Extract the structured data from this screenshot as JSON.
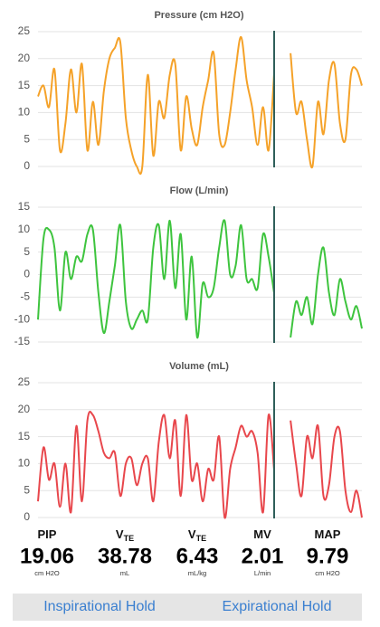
{
  "chart_data": [
    {
      "type": "line",
      "title": "Pressure (cm H2O)",
      "color": "#f5a229",
      "ylim": [
        0,
        25
      ],
      "yticks": [
        0,
        5,
        10,
        15,
        20,
        25
      ],
      "grid": true,
      "values": [
        13,
        15,
        11,
        18,
        3,
        8,
        18,
        10,
        19,
        3,
        12,
        4,
        14,
        20,
        22,
        23,
        9,
        3,
        0,
        0,
        17,
        2,
        12,
        9,
        17,
        19,
        3,
        13,
        7,
        4,
        11,
        16,
        21,
        6,
        4,
        10,
        18,
        24,
        16,
        11,
        4,
        11,
        3,
        17,
        null,
        null,
        21,
        10,
        12,
        5,
        0,
        12,
        6,
        16,
        19,
        8,
        5,
        17,
        18,
        15
      ]
    },
    {
      "type": "line",
      "title": "Flow (L/min)",
      "color": "#3ec43e",
      "ylim": [
        -15,
        15
      ],
      "yticks": [
        -15,
        -10,
        -5,
        0,
        5,
        10,
        15
      ],
      "grid": true,
      "values": [
        -10,
        8,
        10,
        6,
        -8,
        5,
        -1,
        4,
        3,
        9,
        10,
        -4,
        -13,
        -6,
        2,
        11,
        -6,
        -12,
        -10,
        -8,
        -10,
        6,
        11,
        -1,
        12,
        -3,
        9,
        -10,
        4,
        -14,
        -2,
        -5,
        -3,
        6,
        12,
        0,
        2,
        11,
        -1,
        -1,
        -3,
        9,
        4,
        -4,
        null,
        null,
        -14,
        -6,
        -9,
        -5,
        -11,
        0,
        6,
        -4,
        -9,
        -1,
        -6,
        -10,
        -7,
        -12
      ]
    },
    {
      "type": "line",
      "title": "Volume (mL)",
      "color": "#e8474c",
      "ylim": [
        0,
        25
      ],
      "yticks": [
        0,
        5,
        10,
        15,
        20,
        25
      ],
      "grid": true,
      "values": [
        3,
        13,
        7,
        10,
        2,
        10,
        1,
        17,
        3,
        18,
        19,
        16,
        12,
        11,
        12,
        4,
        10,
        11,
        6,
        10,
        11,
        3,
        14,
        19,
        11,
        18,
        4,
        19,
        7,
        10,
        3,
        9,
        7,
        15,
        0,
        9,
        13,
        17,
        15,
        16,
        12,
        1,
        19,
        9,
        null,
        null,
        18,
        10,
        4,
        15,
        11,
        17,
        4,
        6,
        15,
        16,
        5,
        1,
        5,
        0
      ]
    }
  ],
  "readouts": [
    {
      "label": "PIP",
      "value": "19.06",
      "unit": "cm H2O"
    },
    {
      "label": "V",
      "sub": "TE",
      "value": "38.78",
      "unit": "mL"
    },
    {
      "label": "V",
      "sub": "TE",
      "value": "6.43",
      "unit": "mL/kg"
    },
    {
      "label": "MV",
      "value": "2.01",
      "unit": "L/min"
    },
    {
      "label": "MAP",
      "value": "9.79",
      "unit": "cm H2O"
    }
  ],
  "buttons": [
    "Inspirational Hold",
    "Expirational Hold"
  ]
}
